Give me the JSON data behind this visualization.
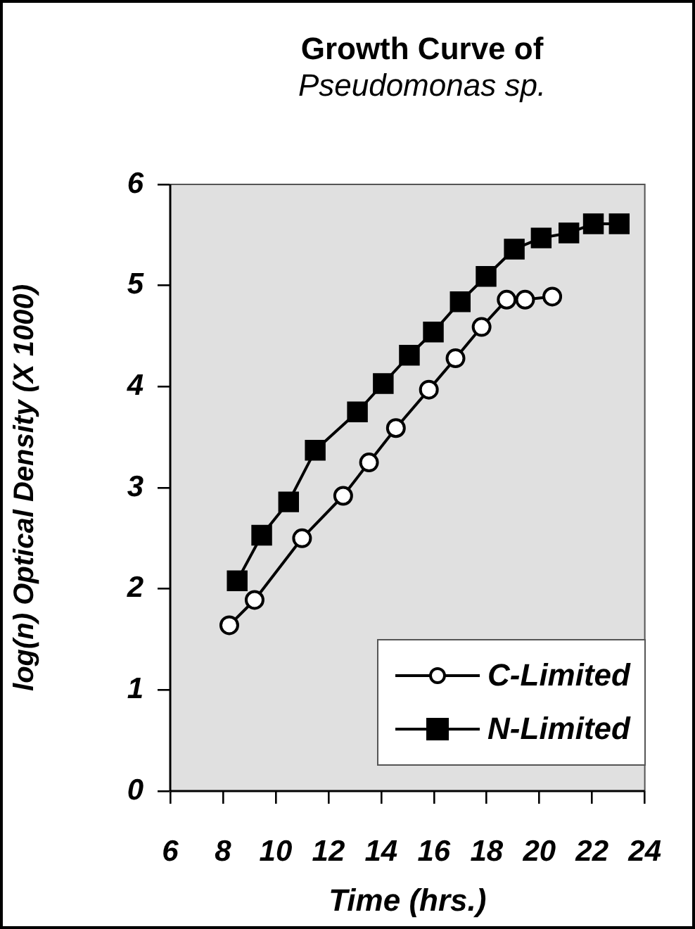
{
  "chart_data": {
    "type": "line",
    "title": "Growth Curve of\nPseudomonas sp.",
    "xlabel": "Time (hrs.)",
    "ylabel": "log(n) Optical Density (X 1000)",
    "xlim": [
      6,
      24
    ],
    "xticks": [
      6,
      8,
      10,
      12,
      14,
      16,
      18,
      20,
      22,
      24
    ],
    "ylim": [
      0,
      6
    ],
    "yticks": [
      0,
      1,
      2,
      3,
      4,
      5,
      6
    ],
    "grid": false,
    "legend": "bottom right",
    "line_style": "solid",
    "series": [
      {
        "name": "C-Limited",
        "color": "#000000",
        "marker": "circle",
        "x": [
          8.24,
          9.2,
          11.0,
          12.56,
          13.54,
          14.56,
          15.81,
          16.82,
          17.81,
          18.76,
          19.46,
          20.49
        ],
        "values": [
          1.64,
          1.89,
          2.5,
          2.92,
          3.25,
          3.59,
          3.97,
          4.28,
          4.59,
          4.86,
          4.86,
          4.89
        ]
      },
      {
        "name": "N-Limited",
        "color": "#000000",
        "marker": "square",
        "x": [
          8.54,
          9.47,
          10.49,
          11.5,
          13.1,
          14.08,
          15.07,
          15.98,
          17.0,
          17.98,
          19.05,
          20.07,
          21.12,
          22.05,
          23.03
        ],
        "values": [
          2.08,
          2.53,
          2.86,
          3.37,
          3.75,
          4.03,
          4.31,
          4.54,
          4.84,
          5.09,
          5.36,
          5.47,
          5.52,
          5.61,
          5.61
        ]
      }
    ]
  }
}
